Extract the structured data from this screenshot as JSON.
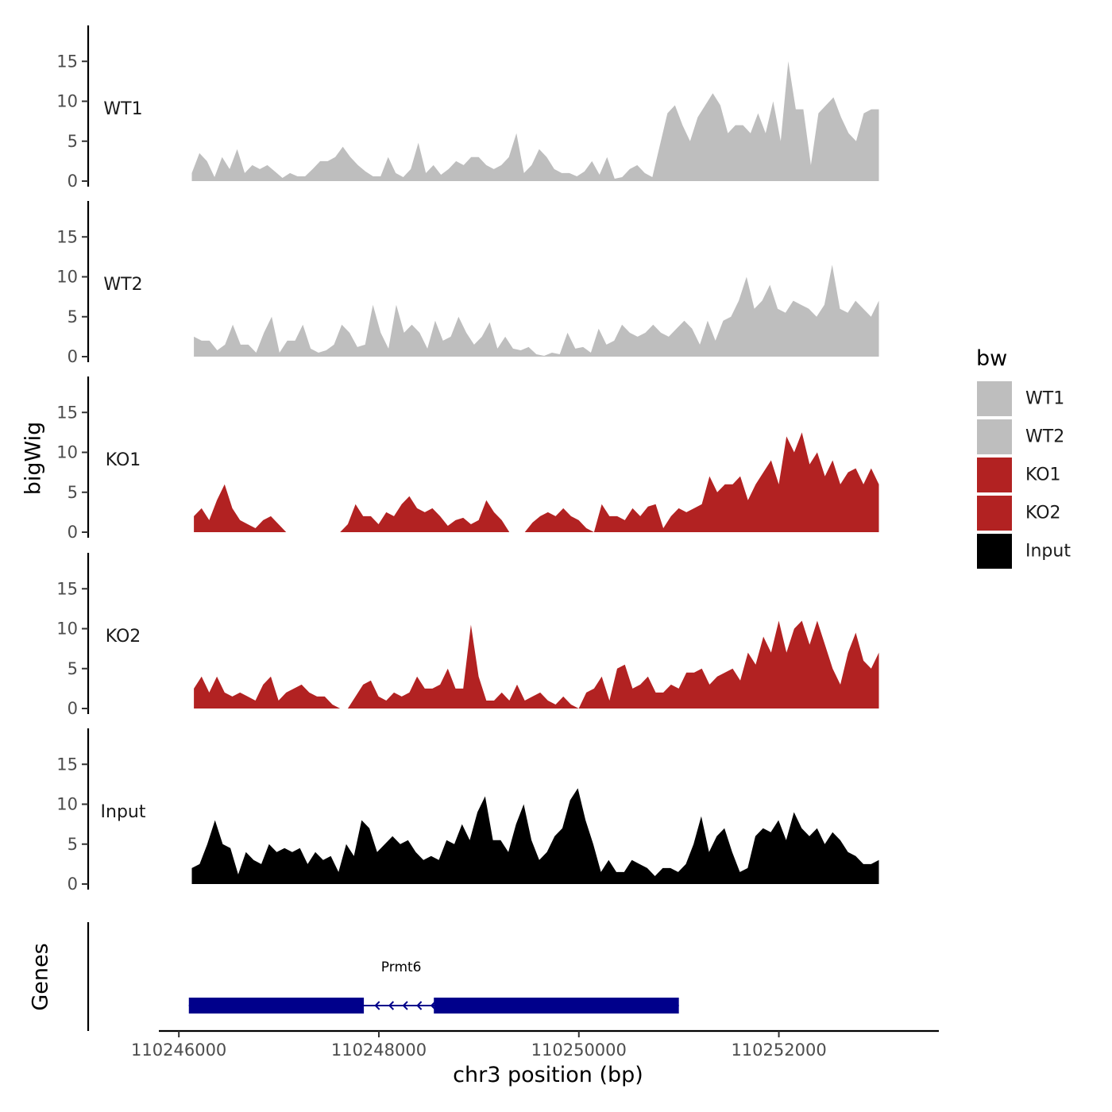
{
  "chart_data": {
    "type": "area",
    "title": "",
    "xlabel": "chr3 position (bp)",
    "ylabel": "bigWig",
    "genes_panel_label": "Genes",
    "xlim": [
      110245800,
      110253600
    ],
    "x_ticks": [
      110246000,
      110248000,
      110250000,
      110252000
    ],
    "x_tick_labels": [
      "110246000",
      "110248000",
      "110250000",
      "110252000"
    ],
    "ylim": [
      0,
      19
    ],
    "y_ticks": [
      0,
      5,
      10,
      15
    ],
    "y_tick_labels": [
      "0",
      "5",
      "10",
      "15"
    ],
    "legend": {
      "title": "bw",
      "position": "right",
      "entries": [
        {
          "label": "WT1",
          "color": "#BEBEBE"
        },
        {
          "label": "WT2",
          "color": "#BEBEBE"
        },
        {
          "label": "KO1",
          "color": "#B22222"
        },
        {
          "label": "KO2",
          "color": "#B22222"
        },
        {
          "label": "Input",
          "color": "#000000"
        }
      ]
    },
    "series": [
      {
        "name": "WT1",
        "color": "#BEBEBE",
        "x_start": 110246130,
        "x_end": 110253000,
        "values": [
          1,
          3.5,
          2.5,
          0.5,
          3,
          1.5,
          4,
          1,
          2,
          1.5,
          2,
          1.2,
          0.4,
          1,
          0.6,
          0.6,
          1.5,
          2.5,
          2.5,
          3,
          4.3,
          3,
          2,
          1.2,
          0.6,
          0.6,
          3,
          1,
          0.5,
          1.5,
          4.8,
          1,
          2,
          0.8,
          1.5,
          2.5,
          2,
          3,
          3,
          2,
          1.5,
          2,
          3,
          6,
          1,
          2,
          4,
          3,
          1.5,
          1,
          1,
          0.6,
          1.2,
          2.5,
          0.8,
          3,
          0.3,
          0.5,
          1.5,
          2,
          1,
          0.5,
          4.5,
          8.5,
          9.5,
          7,
          5,
          8,
          9.5,
          11,
          9.5,
          6,
          7,
          7,
          6,
          8.5,
          6,
          10,
          5,
          15,
          9,
          9,
          2,
          8.5,
          9.5,
          10.5,
          8,
          6,
          5,
          8.5,
          9,
          9
        ]
      },
      {
        "name": "WT2",
        "color": "#BEBEBE",
        "x_start": 110246150,
        "x_end": 110253000,
        "values": [
          2.5,
          2,
          2,
          0.8,
          1.5,
          4,
          1.5,
          1.5,
          0.5,
          3,
          5,
          0.5,
          2,
          2,
          4,
          1,
          0.5,
          0.8,
          1.5,
          4,
          3,
          1.2,
          1.5,
          6.5,
          3,
          1,
          6.5,
          3,
          4,
          3,
          1,
          4.5,
          2,
          2.5,
          5,
          3,
          1.5,
          2.5,
          4.3,
          1,
          2.5,
          1,
          0.8,
          1.2,
          0.3,
          0.1,
          0.5,
          0.3,
          3,
          1,
          1.2,
          0.5,
          3.5,
          1.5,
          2,
          4,
          3,
          2.5,
          3,
          4,
          3,
          2.5,
          3.5,
          4.5,
          3.5,
          1.5,
          4.5,
          2,
          4.5,
          5,
          7,
          10,
          6,
          7,
          9,
          6,
          5.5,
          7,
          6.5,
          6,
          5,
          6.5,
          11.5,
          6,
          5.5,
          7,
          6,
          5,
          7
        ]
      },
      {
        "name": "KO1",
        "color": "#B22222",
        "x_start": 110246150,
        "x_end": 110253000,
        "values": [
          2,
          3,
          1.5,
          4,
          6,
          3,
          1.5,
          1,
          0.5,
          1.5,
          2,
          1,
          0,
          0,
          0,
          0,
          0,
          0,
          0,
          0,
          1,
          3.5,
          2,
          2,
          1,
          2.5,
          2,
          3.5,
          4.5,
          3,
          2.5,
          3,
          2,
          0.8,
          1.5,
          1.8,
          1,
          1.5,
          4,
          2.5,
          1.5,
          0,
          0,
          0,
          1.2,
          2,
          2.5,
          2,
          3,
          2,
          1.5,
          0.5,
          0,
          3.5,
          2,
          2,
          1.5,
          3,
          2,
          3.2,
          3.5,
          0.5,
          2,
          3,
          2.5,
          3,
          3.5,
          7,
          5,
          6,
          6,
          7,
          4,
          6,
          7.5,
          9,
          6,
          12,
          10,
          12.5,
          8.5,
          10,
          7,
          9,
          6,
          7.5,
          8,
          6,
          8,
          6
        ]
      },
      {
        "name": "KO2",
        "color": "#B22222",
        "x_start": 110246150,
        "x_end": 110253000,
        "values": [
          2.5,
          4,
          2,
          4,
          2,
          1.5,
          2,
          1.5,
          1,
          3,
          4,
          1,
          2,
          2.5,
          3,
          2,
          1.5,
          1.5,
          0.5,
          0,
          0,
          1.5,
          3,
          3.5,
          1.5,
          1,
          2,
          1.5,
          2,
          4,
          2.5,
          2.5,
          3,
          5,
          2.5,
          2.5,
          10.5,
          4,
          1,
          1,
          2,
          1,
          3,
          1,
          1.5,
          2,
          1,
          0.5,
          1.5,
          0.5,
          0,
          2,
          2.5,
          4,
          1,
          5,
          5.5,
          2.5,
          3,
          4,
          2,
          2,
          3,
          2.5,
          4.5,
          4.5,
          5,
          3,
          4,
          4.5,
          5,
          3.5,
          7,
          5.5,
          9,
          7,
          11,
          7,
          10,
          11,
          8,
          11,
          8,
          5,
          3,
          7,
          9.5,
          6,
          5,
          7
        ]
      },
      {
        "name": "Input",
        "color": "#000000",
        "x_start": 110246130,
        "x_end": 110253000,
        "values": [
          2,
          2.5,
          5,
          8,
          5,
          4.5,
          1.2,
          4,
          3,
          2.5,
          5,
          4,
          4.5,
          4,
          4.5,
          2.5,
          4,
          3,
          3.5,
          1.5,
          5,
          3.5,
          8,
          7,
          4,
          5,
          6,
          5,
          5.5,
          4,
          3,
          3.5,
          3,
          5.5,
          5,
          7.5,
          5.5,
          9,
          11,
          5.5,
          5.5,
          4,
          7.5,
          10,
          5.5,
          3,
          4,
          6,
          7,
          10.5,
          12,
          8,
          5,
          1.5,
          3,
          1.5,
          1.5,
          3,
          2.5,
          2,
          1,
          2,
          2,
          1.5,
          2.5,
          5,
          8.5,
          4,
          6,
          7,
          4,
          1.5,
          2,
          6,
          7,
          6.5,
          8,
          5.5,
          9,
          7,
          6,
          7,
          5,
          6.5,
          5.5,
          4,
          3.5,
          2.5,
          2.5,
          3
        ]
      }
    ],
    "genes": [
      {
        "name": "Prmt6",
        "strand": "-",
        "start": 110246100,
        "end": 110251000,
        "color": "#00008B",
        "blocks": [
          [
            110246100,
            110247850
          ],
          [
            110248550,
            110251000
          ]
        ]
      }
    ]
  }
}
